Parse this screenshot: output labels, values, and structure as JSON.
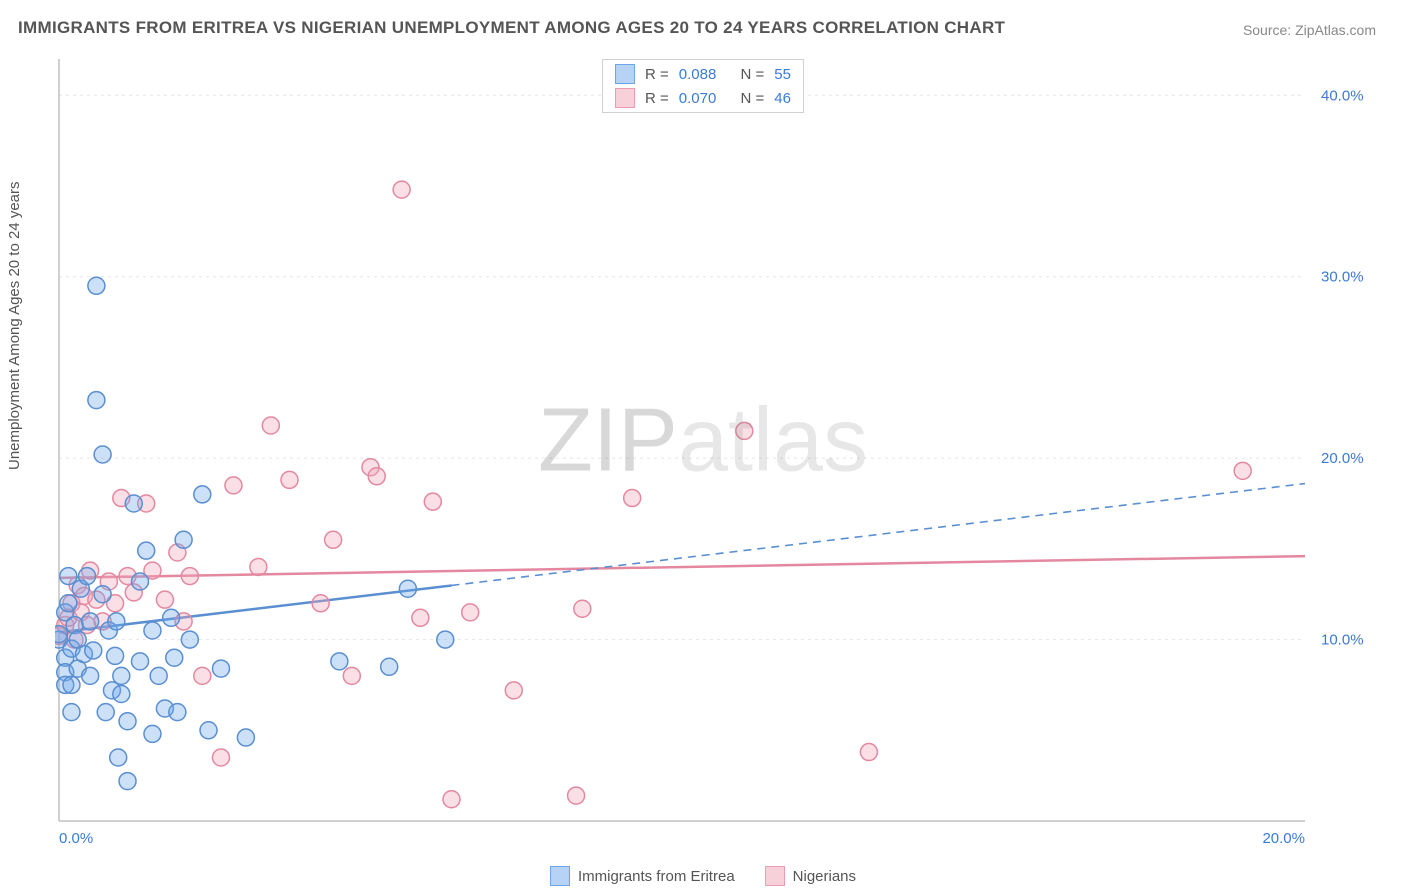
{
  "title": "IMMIGRANTS FROM ERITREA VS NIGERIAN UNEMPLOYMENT AMONG AGES 20 TO 24 YEARS CORRELATION CHART",
  "source_label": "Source:",
  "source_name": "ZipAtlas.com",
  "y_axis_label": "Unemployment Among Ages 20 to 24 years",
  "watermark": {
    "left": "ZIP",
    "right": "atlas"
  },
  "legend_top": {
    "rows": [
      {
        "swatch": "blue",
        "r_label": "R =",
        "r": "0.088",
        "n_label": "N =",
        "n": "55"
      },
      {
        "swatch": "pink",
        "r_label": "R =",
        "r": "0.070",
        "n_label": "N =",
        "n": "46"
      }
    ]
  },
  "legend_bottom": {
    "series": [
      {
        "swatch": "blue",
        "label": "Immigrants from Eritrea"
      },
      {
        "swatch": "pink",
        "label": "Nigerians"
      }
    ]
  },
  "chart": {
    "type": "scatter",
    "background_color": "#ffffff",
    "grid_color": "#e5e5e5",
    "axis_color": "#c0c0c0",
    "tick_text_color": "#3a7bd5",
    "x": {
      "min": 0,
      "max": 20,
      "ticks": [
        0,
        20
      ],
      "tick_labels": [
        "0.0%",
        "20.0%"
      ],
      "tick_fontsize": 15
    },
    "y": {
      "min": 0,
      "max": 42,
      "ticks": [
        10,
        20,
        30,
        40
      ],
      "tick_labels": [
        "10.0%",
        "20.0%",
        "30.0%",
        "40.0%"
      ],
      "tick_fontsize": 15
    },
    "marker_radius": 8.5,
    "marker_stroke_width": 1.5,
    "marker_fill_opacity": 0.35,
    "series_blue": {
      "fill": "#6ea5eb",
      "stroke": "#5a8fd1",
      "trend": {
        "solid_start_x": 0,
        "solid_end_x": 6.3,
        "dash_end_x": 20,
        "y0": 10.4,
        "slope": 0.41,
        "stroke_width": 2.5,
        "dash": "8 6"
      },
      "points": [
        [
          0.0,
          10.0
        ],
        [
          0.0,
          10.3
        ],
        [
          0.1,
          9.0
        ],
        [
          0.1,
          8.2
        ],
        [
          0.1,
          7.5
        ],
        [
          0.1,
          11.5
        ],
        [
          0.15,
          12.0
        ],
        [
          0.15,
          13.5
        ],
        [
          0.2,
          9.5
        ],
        [
          0.2,
          7.5
        ],
        [
          0.2,
          6.0
        ],
        [
          0.25,
          10.8
        ],
        [
          0.3,
          10.0
        ],
        [
          0.3,
          8.4
        ],
        [
          0.35,
          12.8
        ],
        [
          0.4,
          9.2
        ],
        [
          0.45,
          13.5
        ],
        [
          0.5,
          11.0
        ],
        [
          0.5,
          8.0
        ],
        [
          0.55,
          9.4
        ],
        [
          0.6,
          29.5
        ],
        [
          0.6,
          23.2
        ],
        [
          0.7,
          20.2
        ],
        [
          0.7,
          12.5
        ],
        [
          0.75,
          6.0
        ],
        [
          0.8,
          10.5
        ],
        [
          0.85,
          7.2
        ],
        [
          0.9,
          9.1
        ],
        [
          0.92,
          11.0
        ],
        [
          0.95,
          3.5
        ],
        [
          1.0,
          8.0
        ],
        [
          1.0,
          7.0
        ],
        [
          1.1,
          2.2
        ],
        [
          1.1,
          5.5
        ],
        [
          1.2,
          17.5
        ],
        [
          1.3,
          13.2
        ],
        [
          1.3,
          8.8
        ],
        [
          1.4,
          14.9
        ],
        [
          1.5,
          4.8
        ],
        [
          1.5,
          10.5
        ],
        [
          1.6,
          8.0
        ],
        [
          1.7,
          6.2
        ],
        [
          1.8,
          11.2
        ],
        [
          1.85,
          9.0
        ],
        [
          1.9,
          6.0
        ],
        [
          2.0,
          15.5
        ],
        [
          2.1,
          10.0
        ],
        [
          2.3,
          18.0
        ],
        [
          2.4,
          5.0
        ],
        [
          2.6,
          8.4
        ],
        [
          3.0,
          4.6
        ],
        [
          4.5,
          8.8
        ],
        [
          5.3,
          8.5
        ],
        [
          5.6,
          12.8
        ],
        [
          6.2,
          10.0
        ]
      ]
    },
    "series_pink": {
      "fill": "#f0a4b6",
      "stroke": "#e488a0",
      "trend": {
        "y0": 13.4,
        "slope": 0.06,
        "stroke_width": 2.5
      },
      "points": [
        [
          0.0,
          10.2
        ],
        [
          0.1,
          10.8
        ],
        [
          0.15,
          11.2
        ],
        [
          0.2,
          12.0
        ],
        [
          0.25,
          10.0
        ],
        [
          0.3,
          13.0
        ],
        [
          0.35,
          11.5
        ],
        [
          0.4,
          12.4
        ],
        [
          0.45,
          10.8
        ],
        [
          0.5,
          13.8
        ],
        [
          0.6,
          12.2
        ],
        [
          0.7,
          11.0
        ],
        [
          0.8,
          13.2
        ],
        [
          0.9,
          12.0
        ],
        [
          1.0,
          17.8
        ],
        [
          1.1,
          13.5
        ],
        [
          1.2,
          12.6
        ],
        [
          1.4,
          17.5
        ],
        [
          1.5,
          13.8
        ],
        [
          1.7,
          12.2
        ],
        [
          1.9,
          14.8
        ],
        [
          2.0,
          11.0
        ],
        [
          2.1,
          13.5
        ],
        [
          2.3,
          8.0
        ],
        [
          2.6,
          3.5
        ],
        [
          2.8,
          18.5
        ],
        [
          3.2,
          14.0
        ],
        [
          3.4,
          21.8
        ],
        [
          3.7,
          18.8
        ],
        [
          4.2,
          12.0
        ],
        [
          4.4,
          15.5
        ],
        [
          4.7,
          8.0
        ],
        [
          5.0,
          19.5
        ],
        [
          5.1,
          19.0
        ],
        [
          5.5,
          34.8
        ],
        [
          5.8,
          11.2
        ],
        [
          6.0,
          17.6
        ],
        [
          6.3,
          1.2
        ],
        [
          6.6,
          11.5
        ],
        [
          7.3,
          7.2
        ],
        [
          8.3,
          1.4
        ],
        [
          8.4,
          11.7
        ],
        [
          9.2,
          17.8
        ],
        [
          11.0,
          21.5
        ],
        [
          13.0,
          3.8
        ],
        [
          19.0,
          19.3
        ]
      ]
    }
  }
}
